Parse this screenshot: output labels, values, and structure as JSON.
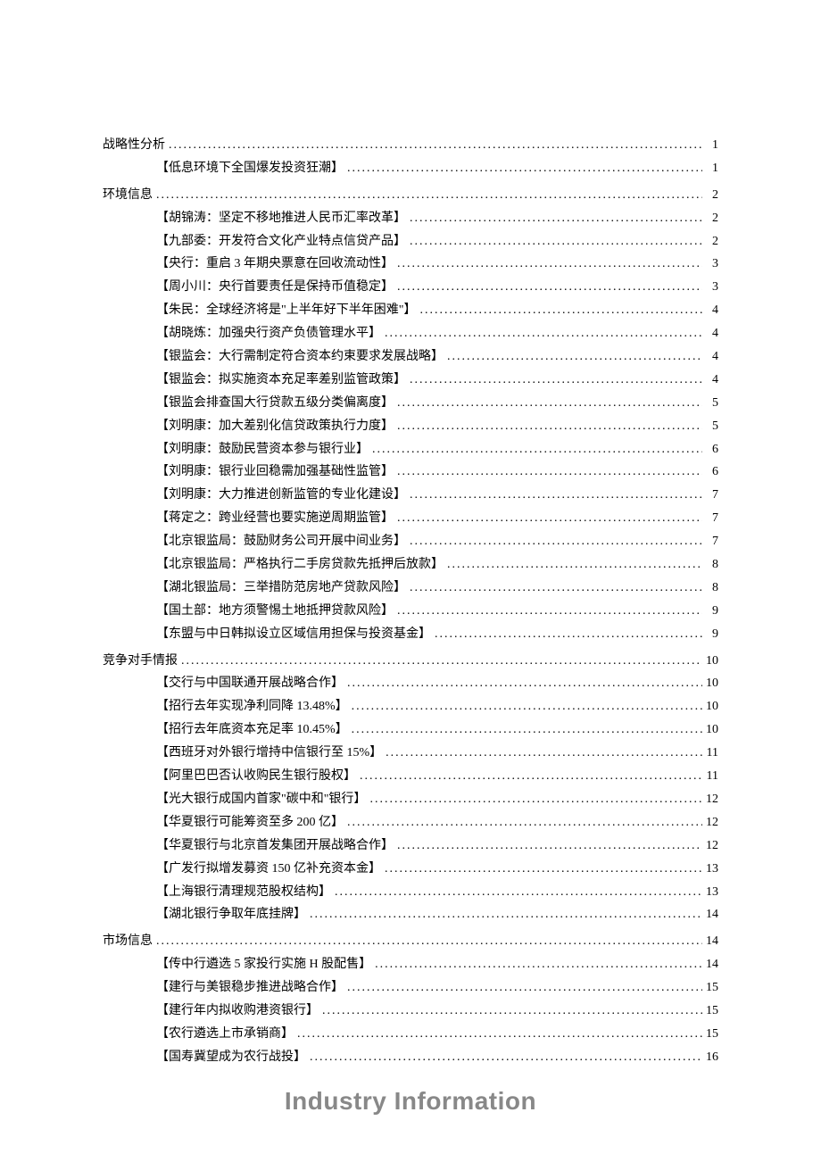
{
  "footer": "Industry Information",
  "colors": {
    "text": "#000000",
    "footer_text": "#888888",
    "background": "#ffffff"
  },
  "typography": {
    "body_fontsize": 14,
    "footer_fontsize": 28,
    "line_height": 1.85
  },
  "toc": [
    {
      "title": "战略性分析",
      "page": "1",
      "items": [
        {
          "title": "【低息环境下全国爆发投资狂潮】",
          "page": "1"
        }
      ]
    },
    {
      "title": "环境信息",
      "page": "2",
      "items": [
        {
          "title": "【胡锦涛：坚定不移地推进人民币汇率改革】",
          "page": "2"
        },
        {
          "title": "【九部委：开发符合文化产业特点信贷产品】",
          "page": "2"
        },
        {
          "title": "【央行：重启 3 年期央票意在回收流动性】",
          "page": "3"
        },
        {
          "title": "【周小川：央行首要责任是保持币值稳定】",
          "page": "3"
        },
        {
          "title": "【朱民：全球经济将是\"上半年好下半年困难\"】",
          "page": "4"
        },
        {
          "title": "【胡晓炼：加强央行资产负债管理水平】",
          "page": "4"
        },
        {
          "title": "【银监会：大行需制定符合资本约束要求发展战略】",
          "page": "4"
        },
        {
          "title": "【银监会：拟实施资本充足率差别监管政策】",
          "page": "4"
        },
        {
          "title": "【银监会排查国大行贷款五级分类偏离度】",
          "page": "5"
        },
        {
          "title": "【刘明康：加大差别化信贷政策执行力度】",
          "page": "5"
        },
        {
          "title": "【刘明康：鼓励民营资本参与银行业】",
          "page": "6"
        },
        {
          "title": "【刘明康：银行业回稳需加强基础性监管】",
          "page": "6"
        },
        {
          "title": "【刘明康：大力推进创新监管的专业化建设】",
          "page": "7"
        },
        {
          "title": "【蒋定之：跨业经营也要实施逆周期监管】",
          "page": "7"
        },
        {
          "title": "【北京银监局：鼓励财务公司开展中间业务】",
          "page": "7"
        },
        {
          "title": "【北京银监局：严格执行二手房贷款先抵押后放款】",
          "page": "8"
        },
        {
          "title": "【湖北银监局：三举措防范房地产贷款风险】",
          "page": "8"
        },
        {
          "title": "【国土部：地方须警惕土地抵押贷款风险】",
          "page": "9"
        },
        {
          "title": "【东盟与中日韩拟设立区域信用担保与投资基金】",
          "page": "9"
        }
      ]
    },
    {
      "title": "竞争对手情报",
      "page": "10",
      "items": [
        {
          "title": "【交行与中国联通开展战略合作】",
          "page": "10"
        },
        {
          "title": "【招行去年实现净利同降 13.48%】",
          "page": "10"
        },
        {
          "title": "【招行去年底资本充足率 10.45%】",
          "page": "10"
        },
        {
          "title": "【西班牙对外银行增持中信银行至 15%】",
          "page": "11"
        },
        {
          "title": "【阿里巴巴否认收购民生银行股权】",
          "page": "11"
        },
        {
          "title": "【光大银行成国内首家\"碳中和\"银行】",
          "page": "12"
        },
        {
          "title": "【华夏银行可能筹资至多 200 亿】",
          "page": "12"
        },
        {
          "title": "【华夏银行与北京首发集团开展战略合作】",
          "page": "12"
        },
        {
          "title": "【广发行拟增发募资 150 亿补充资本金】",
          "page": "13"
        },
        {
          "title": "【上海银行清理规范股权结构】",
          "page": "13"
        },
        {
          "title": "【湖北银行争取年底挂牌】",
          "page": "14"
        }
      ]
    },
    {
      "title": "市场信息",
      "page": "14",
      "items": [
        {
          "title": "【传中行遴选 5 家投行实施 H 股配售】",
          "page": "14"
        },
        {
          "title": "【建行与美银稳步推进战略合作】",
          "page": "15"
        },
        {
          "title": "【建行年内拟收购港资银行】",
          "page": "15"
        },
        {
          "title": "【农行遴选上市承销商】",
          "page": "15"
        },
        {
          "title": "【国寿冀望成为农行战投】",
          "page": "16"
        }
      ]
    }
  ]
}
